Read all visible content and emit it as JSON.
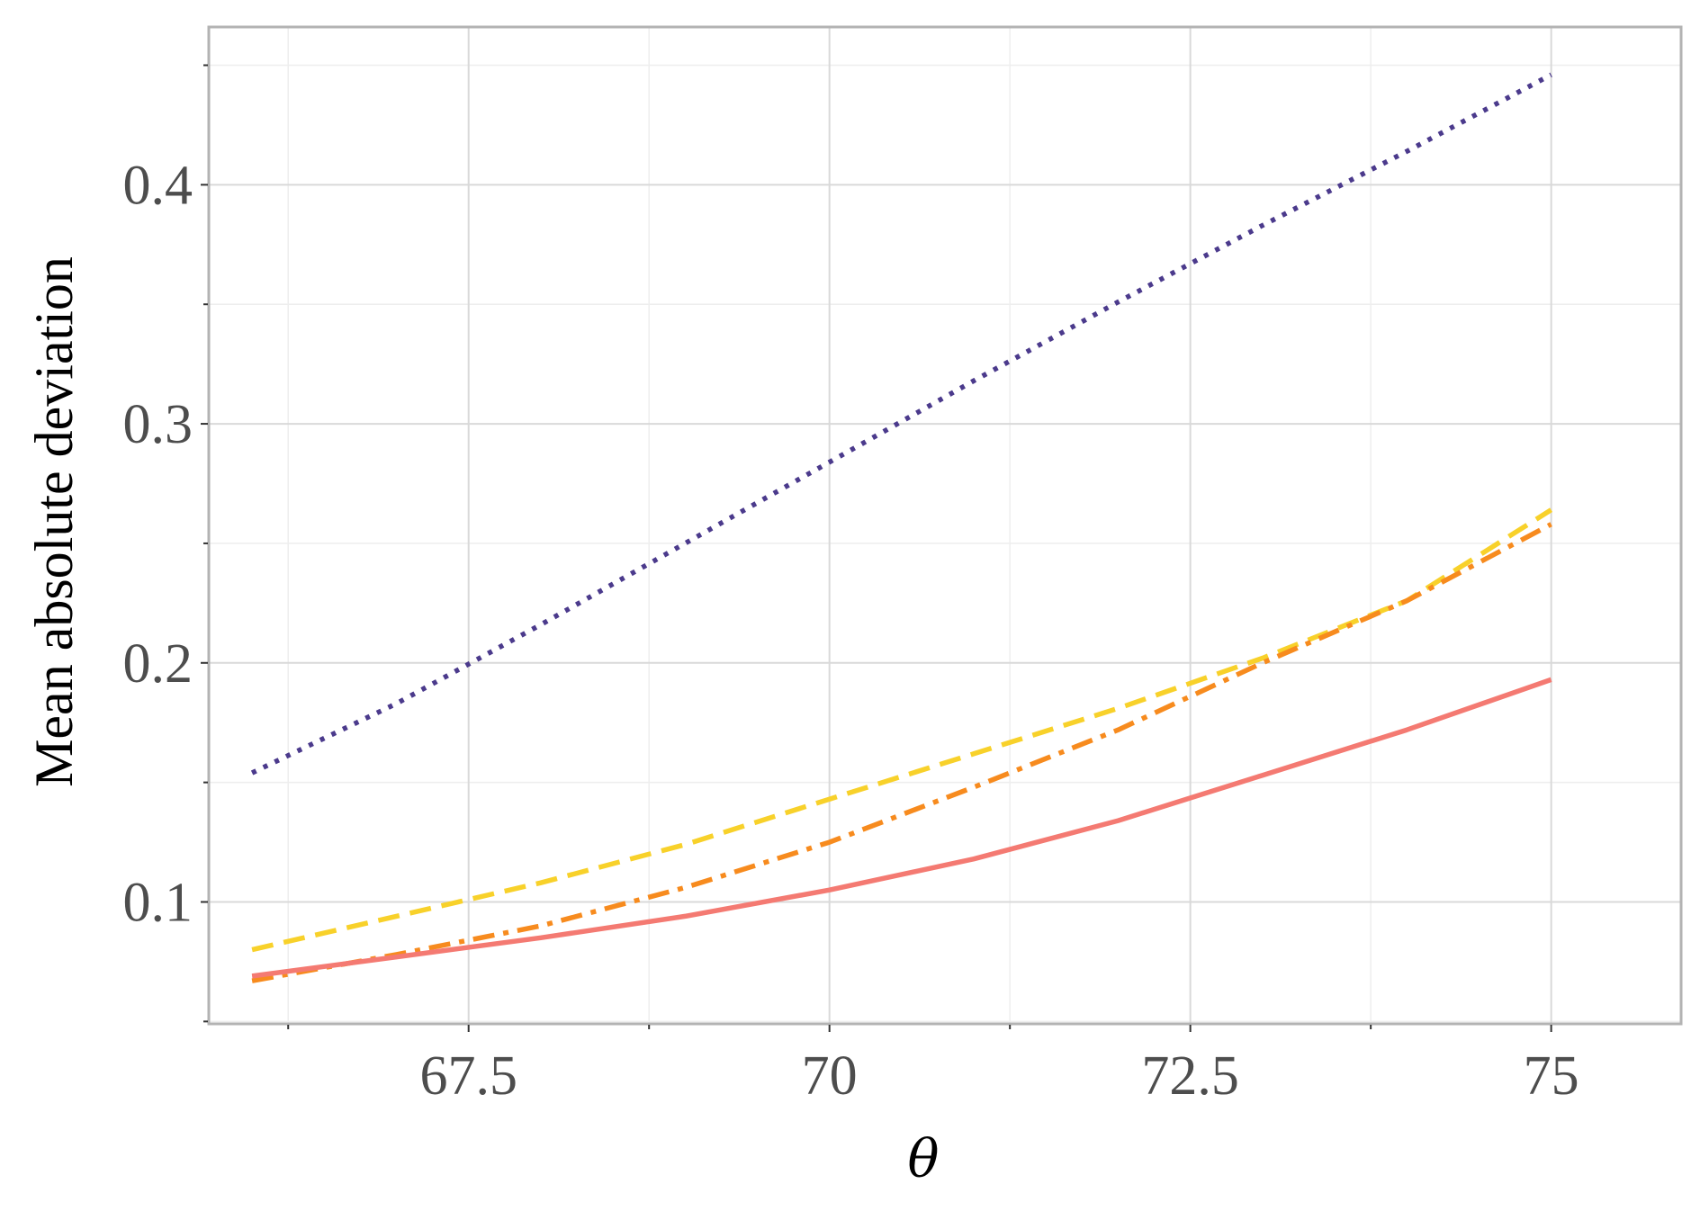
{
  "chart_data": {
    "type": "line",
    "title": "",
    "xlabel": "θ",
    "ylabel": "Mean absolute deviation",
    "xlim": [
      65.7,
      75.9
    ],
    "ylim": [
      0.049,
      0.466
    ],
    "x_ticks": [
      67.5,
      70,
      72.5,
      75
    ],
    "x_tick_labels": [
      "67.5",
      "70",
      "72.5",
      "75"
    ],
    "x_minor_ticks": [
      66.25,
      68.75,
      71.25,
      73.75
    ],
    "y_ticks": [
      0.1,
      0.2,
      0.3,
      0.4
    ],
    "y_tick_labels": [
      "0.1",
      "0.2",
      "0.3",
      "0.4"
    ],
    "y_minor_ticks": [
      0.05,
      0.15,
      0.25,
      0.35,
      0.45
    ],
    "grid": true,
    "legend": "none",
    "x": [
      66,
      67,
      68,
      69,
      70,
      71,
      72,
      73,
      74,
      75
    ],
    "series": [
      {
        "color": "#4b3a8c",
        "dash": "dotted",
        "values": [
          0.154,
          0.183,
          0.216,
          0.25,
          0.284,
          0.318,
          0.351,
          0.383,
          0.414,
          0.446
        ]
      },
      {
        "color": "#f8d12a",
        "dash": "dashed",
        "values": [
          0.08,
          0.094,
          0.108,
          0.124,
          0.143,
          0.162,
          0.181,
          0.202,
          0.226,
          0.264
        ]
      },
      {
        "color": "#f78b1e",
        "dash": "dashdot",
        "values": [
          0.067,
          0.078,
          0.09,
          0.106,
          0.125,
          0.148,
          0.172,
          0.2,
          0.226,
          0.258
        ]
      },
      {
        "color": "#f47a72",
        "dash": "solid",
        "values": [
          0.069,
          0.077,
          0.085,
          0.094,
          0.105,
          0.118,
          0.134,
          0.153,
          0.172,
          0.193
        ]
      }
    ],
    "colors": {
      "panel_border": "#b3b3b3",
      "grid_major": "#d9d9d9",
      "grid_minor": "#eeeeee",
      "tick_text": "#4d4d4d"
    }
  }
}
